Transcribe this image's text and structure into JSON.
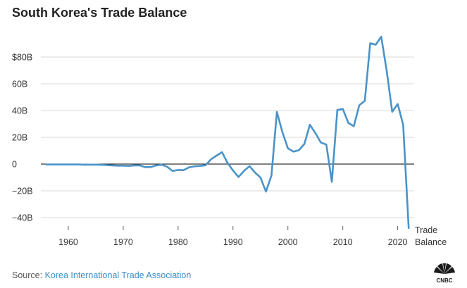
{
  "title": "South Korea's Trade Balance",
  "source": {
    "prefix": "Source: ",
    "name": "Korea International Trade Association"
  },
  "logo_text": "CNBC",
  "colors": {
    "line": "#4a93c9",
    "grid": "#d9d9d9",
    "zero": "#000000",
    "text": "#333333"
  },
  "chart_data": {
    "type": "line",
    "title": "South Korea's Trade Balance",
    "series": [
      {
        "name": "Trade Balance",
        "x": [
          1956,
          1957,
          1958,
          1959,
          1960,
          1961,
          1962,
          1963,
          1964,
          1965,
          1966,
          1967,
          1968,
          1969,
          1970,
          1971,
          1972,
          1973,
          1974,
          1975,
          1976,
          1977,
          1978,
          1979,
          1980,
          1981,
          1982,
          1983,
          1984,
          1985,
          1986,
          1987,
          1988,
          1989,
          1990,
          1991,
          1992,
          1993,
          1994,
          1995,
          1996,
          1997,
          1998,
          1999,
          2000,
          2001,
          2002,
          2003,
          2004,
          2005,
          2006,
          2007,
          2008,
          2009,
          2010,
          2011,
          2012,
          2013,
          2014,
          2015,
          2016,
          2017,
          2018,
          2019,
          2020,
          2021,
          2022
        ],
        "values": [
          -0.3,
          -0.3,
          -0.3,
          -0.3,
          -0.3,
          -0.3,
          -0.3,
          -0.5,
          -0.4,
          -0.4,
          -0.6,
          -0.8,
          -1.0,
          -1.2,
          -1.2,
          -1.4,
          -1.0,
          -1.0,
          -2.3,
          -2.2,
          -1.0,
          -0.5,
          -2.0,
          -5.2,
          -4.4,
          -4.6,
          -2.4,
          -1.7,
          -1.4,
          -0.9,
          3.6,
          6.3,
          8.9,
          0.9,
          -4.8,
          -9.7,
          -5.1,
          -1.6,
          -6.3,
          -10.1,
          -20.6,
          -8.5,
          39.0,
          23.9,
          11.8,
          9.3,
          10.3,
          15.0,
          29.4,
          23.2,
          16.1,
          14.6,
          -13.3,
          40.4,
          41.2,
          30.8,
          28.3,
          44.0,
          47.2,
          90.3,
          89.2,
          95.2,
          69.7,
          39.1,
          44.9,
          29.3,
          -47.8
        ]
      }
    ],
    "xticks": [
      1960,
      1970,
      1980,
      1990,
      2000,
      2010,
      2020
    ],
    "xlim": [
      1955,
      2023
    ],
    "yticks": [
      -40,
      -20,
      0,
      20,
      40,
      60,
      80
    ],
    "ytick_labels": [
      "−40B",
      "−20B",
      "0",
      "20B",
      "40B",
      "60B",
      "$80B"
    ],
    "ylim": [
      -48,
      100
    ],
    "series_label": [
      "Trade",
      "Balance"
    ],
    "grid": true
  }
}
